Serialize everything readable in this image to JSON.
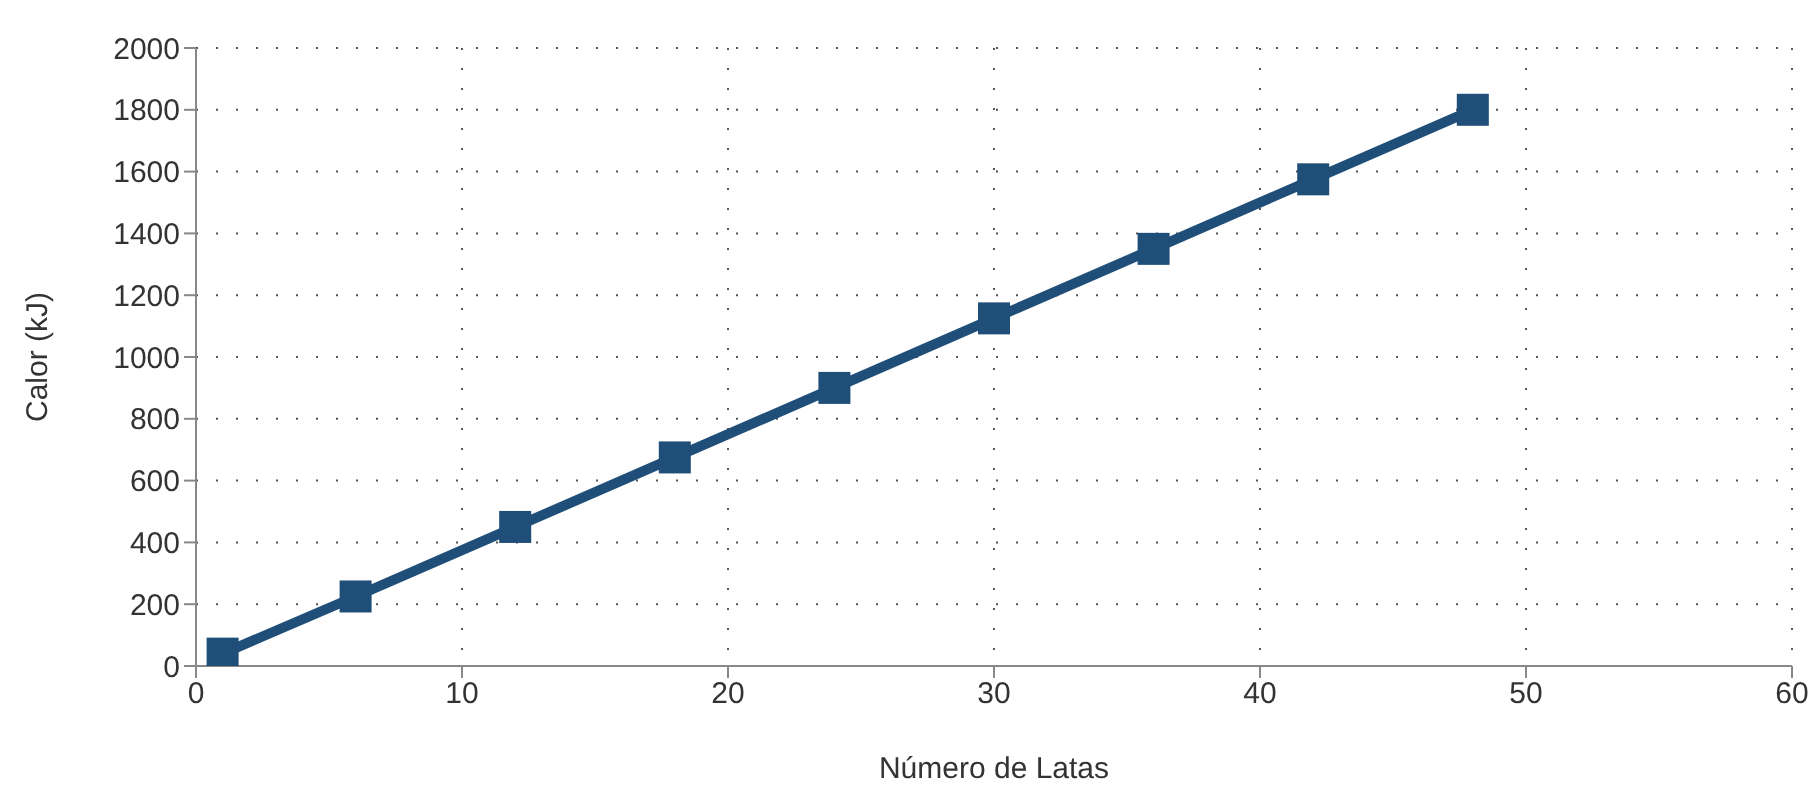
{
  "chart_data": {
    "type": "line",
    "xlabel": "Número de Latas",
    "ylabel": "Calor (kJ)",
    "x": [
      1,
      6,
      12,
      18,
      24,
      30,
      36,
      42,
      48
    ],
    "series": [
      {
        "color": "#1f4e79",
        "values": [
          40,
          225,
          450,
          675,
          900,
          1125,
          1350,
          1575,
          1800
        ]
      }
    ],
    "xlim": [
      0,
      60
    ],
    "xticks": [
      0,
      10,
      20,
      30,
      40,
      50,
      60
    ],
    "ylim": [
      0,
      2000
    ],
    "yticks": [
      0,
      200,
      400,
      600,
      800,
      1000,
      1200,
      1400,
      1600,
      1800,
      2000
    ],
    "grid": true,
    "marker": "square",
    "line_style": "solid"
  }
}
